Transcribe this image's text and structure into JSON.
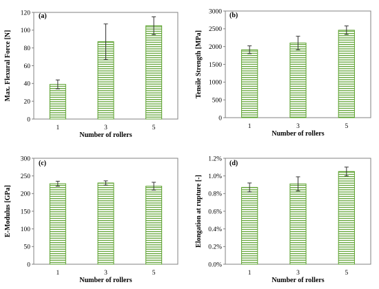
{
  "chart_data": [
    {
      "type": "bar",
      "panel": "(a)",
      "categories": [
        "1",
        "3",
        "5"
      ],
      "values": [
        39,
        87,
        105
      ],
      "error": [
        5,
        20,
        10
      ],
      "xlabel": "Number of rollers",
      "ylabel": "Max. Flexural Force [N]",
      "ylim": [
        0,
        120
      ],
      "yticks": [
        "0",
        "20",
        "40",
        "60",
        "80",
        "100",
        "120"
      ],
      "grid": false,
      "bar_color": "#5aa02c"
    },
    {
      "type": "bar",
      "panel": "(b)",
      "categories": [
        "1",
        "3",
        "5"
      ],
      "values": [
        1910,
        2100,
        2460
      ],
      "error": [
        110,
        190,
        120
      ],
      "xlabel": "Number of rollers",
      "ylabel": "Tensile Strength [MPa]",
      "ylim": [
        0,
        3000
      ],
      "yticks": [
        "0",
        "500",
        "1000",
        "1500",
        "2000",
        "2500",
        "3000"
      ],
      "grid": false,
      "bar_color": "#5aa02c"
    },
    {
      "type": "bar",
      "panel": "(c)",
      "categories": [
        "1",
        "3",
        "5"
      ],
      "values": [
        228,
        230,
        221
      ],
      "error": [
        7,
        6,
        11
      ],
      "xlabel": "Number of rollers",
      "ylabel": "E-Modulus [GPa]",
      "ylim": [
        0,
        300
      ],
      "yticks": [
        "0",
        "50",
        "100",
        "150",
        "200",
        "250",
        "300"
      ],
      "grid": false,
      "bar_color": "#5aa02c"
    },
    {
      "type": "bar",
      "panel": "(d)",
      "categories": [
        "1",
        "3",
        "5"
      ],
      "values": [
        0.87,
        0.91,
        1.05
      ],
      "error": [
        0.05,
        0.08,
        0.05
      ],
      "xlabel": "Number of rollers",
      "ylabel": "Elongation at rupture  [-]",
      "ylim": [
        0,
        1.2
      ],
      "yticks": [
        "0.0%",
        "0.2%",
        "0.4%",
        "0.6%",
        "0.8%",
        "1.0%",
        "1.2%"
      ],
      "grid": false,
      "bar_color": "#5aa02c"
    }
  ]
}
